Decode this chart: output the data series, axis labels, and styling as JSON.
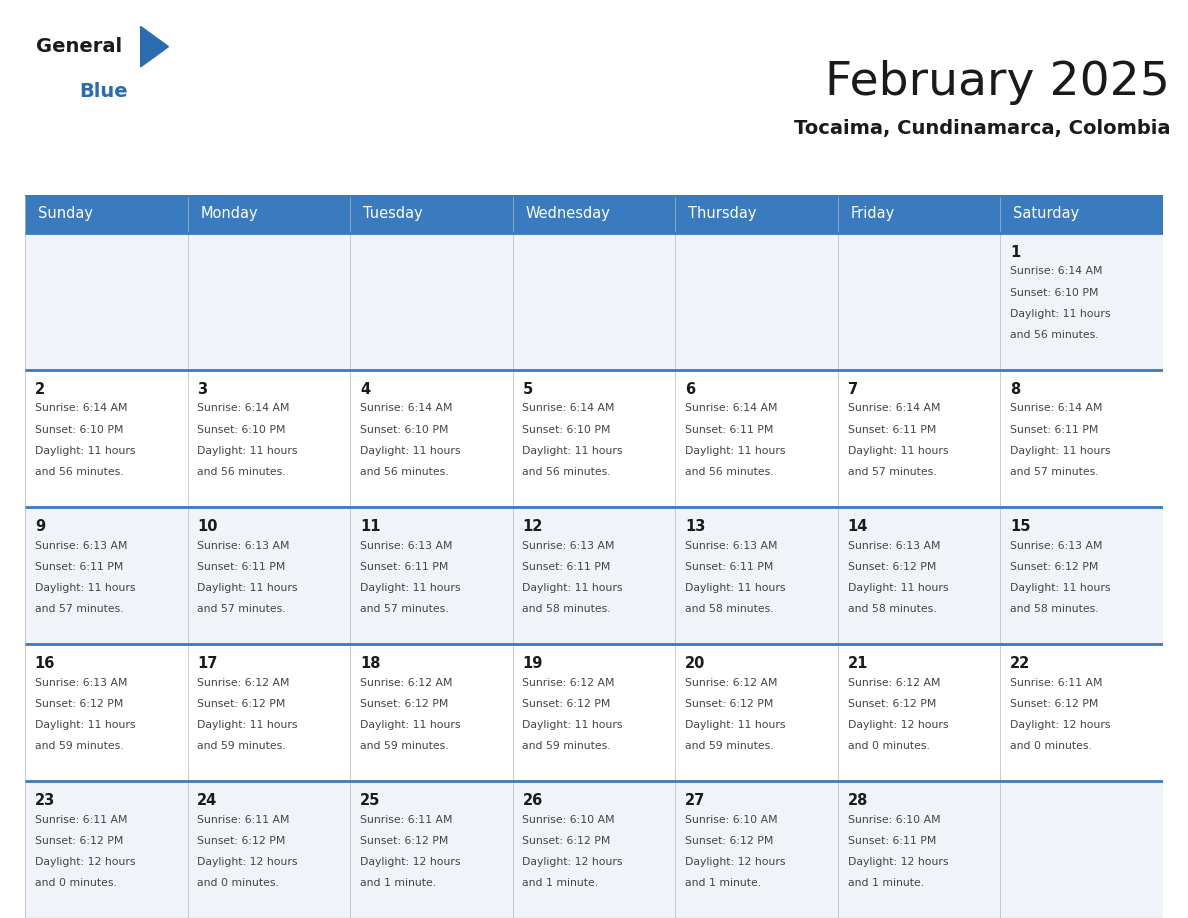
{
  "title": "February 2025",
  "subtitle": "Tocaima, Cundinamarca, Colombia",
  "header_bg_color": "#3a7abf",
  "header_text_color": "#ffffff",
  "border_color": "#3a7abf",
  "cell_border_color": "#b0b8c0",
  "day_headers": [
    "Sunday",
    "Monday",
    "Tuesday",
    "Wednesday",
    "Thursday",
    "Friday",
    "Saturday"
  ],
  "title_color": "#1a1a1a",
  "subtitle_color": "#1a1a1a",
  "day_num_color": "#1a1a1a",
  "info_color": "#444444",
  "cell_bg_even": "#f0f4f8",
  "cell_bg_odd": "#ffffff",
  "days": [
    {
      "date": 1,
      "col": 6,
      "row": 0,
      "sunrise": "6:14 AM",
      "sunset": "6:10 PM",
      "daylight_hours": 11,
      "daylight_minutes": 56
    },
    {
      "date": 2,
      "col": 0,
      "row": 1,
      "sunrise": "6:14 AM",
      "sunset": "6:10 PM",
      "daylight_hours": 11,
      "daylight_minutes": 56
    },
    {
      "date": 3,
      "col": 1,
      "row": 1,
      "sunrise": "6:14 AM",
      "sunset": "6:10 PM",
      "daylight_hours": 11,
      "daylight_minutes": 56
    },
    {
      "date": 4,
      "col": 2,
      "row": 1,
      "sunrise": "6:14 AM",
      "sunset": "6:10 PM",
      "daylight_hours": 11,
      "daylight_minutes": 56
    },
    {
      "date": 5,
      "col": 3,
      "row": 1,
      "sunrise": "6:14 AM",
      "sunset": "6:10 PM",
      "daylight_hours": 11,
      "daylight_minutes": 56
    },
    {
      "date": 6,
      "col": 4,
      "row": 1,
      "sunrise": "6:14 AM",
      "sunset": "6:11 PM",
      "daylight_hours": 11,
      "daylight_minutes": 56
    },
    {
      "date": 7,
      "col": 5,
      "row": 1,
      "sunrise": "6:14 AM",
      "sunset": "6:11 PM",
      "daylight_hours": 11,
      "daylight_minutes": 57
    },
    {
      "date": 8,
      "col": 6,
      "row": 1,
      "sunrise": "6:14 AM",
      "sunset": "6:11 PM",
      "daylight_hours": 11,
      "daylight_minutes": 57
    },
    {
      "date": 9,
      "col": 0,
      "row": 2,
      "sunrise": "6:13 AM",
      "sunset": "6:11 PM",
      "daylight_hours": 11,
      "daylight_minutes": 57
    },
    {
      "date": 10,
      "col": 1,
      "row": 2,
      "sunrise": "6:13 AM",
      "sunset": "6:11 PM",
      "daylight_hours": 11,
      "daylight_minutes": 57
    },
    {
      "date": 11,
      "col": 2,
      "row": 2,
      "sunrise": "6:13 AM",
      "sunset": "6:11 PM",
      "daylight_hours": 11,
      "daylight_minutes": 57
    },
    {
      "date": 12,
      "col": 3,
      "row": 2,
      "sunrise": "6:13 AM",
      "sunset": "6:11 PM",
      "daylight_hours": 11,
      "daylight_minutes": 58
    },
    {
      "date": 13,
      "col": 4,
      "row": 2,
      "sunrise": "6:13 AM",
      "sunset": "6:11 PM",
      "daylight_hours": 11,
      "daylight_minutes": 58
    },
    {
      "date": 14,
      "col": 5,
      "row": 2,
      "sunrise": "6:13 AM",
      "sunset": "6:12 PM",
      "daylight_hours": 11,
      "daylight_minutes": 58
    },
    {
      "date": 15,
      "col": 6,
      "row": 2,
      "sunrise": "6:13 AM",
      "sunset": "6:12 PM",
      "daylight_hours": 11,
      "daylight_minutes": 58
    },
    {
      "date": 16,
      "col": 0,
      "row": 3,
      "sunrise": "6:13 AM",
      "sunset": "6:12 PM",
      "daylight_hours": 11,
      "daylight_minutes": 59
    },
    {
      "date": 17,
      "col": 1,
      "row": 3,
      "sunrise": "6:12 AM",
      "sunset": "6:12 PM",
      "daylight_hours": 11,
      "daylight_minutes": 59
    },
    {
      "date": 18,
      "col": 2,
      "row": 3,
      "sunrise": "6:12 AM",
      "sunset": "6:12 PM",
      "daylight_hours": 11,
      "daylight_minutes": 59
    },
    {
      "date": 19,
      "col": 3,
      "row": 3,
      "sunrise": "6:12 AM",
      "sunset": "6:12 PM",
      "daylight_hours": 11,
      "daylight_minutes": 59
    },
    {
      "date": 20,
      "col": 4,
      "row": 3,
      "sunrise": "6:12 AM",
      "sunset": "6:12 PM",
      "daylight_hours": 11,
      "daylight_minutes": 59
    },
    {
      "date": 21,
      "col": 5,
      "row": 3,
      "sunrise": "6:12 AM",
      "sunset": "6:12 PM",
      "daylight_hours": 12,
      "daylight_minutes": 0
    },
    {
      "date": 22,
      "col": 6,
      "row": 3,
      "sunrise": "6:11 AM",
      "sunset": "6:12 PM",
      "daylight_hours": 12,
      "daylight_minutes": 0
    },
    {
      "date": 23,
      "col": 0,
      "row": 4,
      "sunrise": "6:11 AM",
      "sunset": "6:12 PM",
      "daylight_hours": 12,
      "daylight_minutes": 0
    },
    {
      "date": 24,
      "col": 1,
      "row": 4,
      "sunrise": "6:11 AM",
      "sunset": "6:12 PM",
      "daylight_hours": 12,
      "daylight_minutes": 0
    },
    {
      "date": 25,
      "col": 2,
      "row": 4,
      "sunrise": "6:11 AM",
      "sunset": "6:12 PM",
      "daylight_hours": 12,
      "daylight_minutes": 1
    },
    {
      "date": 26,
      "col": 3,
      "row": 4,
      "sunrise": "6:10 AM",
      "sunset": "6:12 PM",
      "daylight_hours": 12,
      "daylight_minutes": 1
    },
    {
      "date": 27,
      "col": 4,
      "row": 4,
      "sunrise": "6:10 AM",
      "sunset": "6:12 PM",
      "daylight_hours": 12,
      "daylight_minutes": 1
    },
    {
      "date": 28,
      "col": 5,
      "row": 4,
      "sunrise": "6:10 AM",
      "sunset": "6:11 PM",
      "daylight_hours": 12,
      "daylight_minutes": 1
    }
  ]
}
